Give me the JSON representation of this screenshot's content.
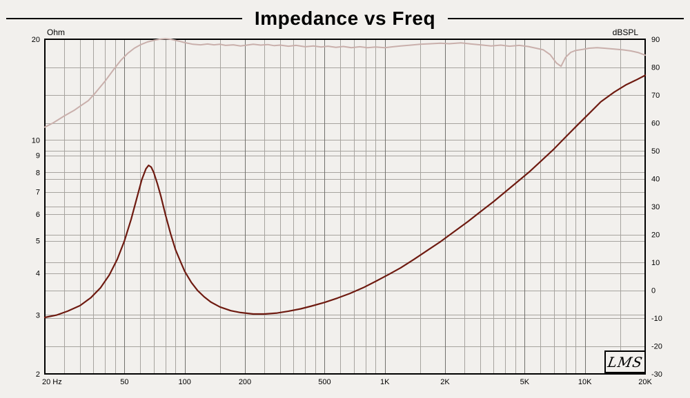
{
  "colors": {
    "background": "#f2f0ed",
    "grid_minor": "#a6a39e",
    "grid_major": "#71706c",
    "frame": "#000000",
    "impedance_curve": "#6e1a10",
    "spl_curve": "#c9afab"
  },
  "logo": {
    "text": "LMS"
  },
  "chart_data": {
    "type": "line",
    "title": "Impedance vs Freq",
    "grid": true,
    "legend": "none",
    "axes": {
      "x": {
        "unit": "Hz",
        "scale": "log",
        "min": 20,
        "max": 20000,
        "major_ticks": [
          {
            "value": 20,
            "label": "20 Hz"
          },
          {
            "value": 50,
            "label": "50"
          },
          {
            "value": 100,
            "label": "100"
          },
          {
            "value": 200,
            "label": "200"
          },
          {
            "value": 500,
            "label": "500"
          },
          {
            "value": 1000,
            "label": "1K"
          },
          {
            "value": 2000,
            "label": "2K"
          },
          {
            "value": 5000,
            "label": "5K"
          },
          {
            "value": 10000,
            "label": "10K"
          },
          {
            "value": 20000,
            "label": "20K"
          }
        ],
        "minor_multipliers": [
          1.5,
          2,
          2.5,
          3,
          3.5,
          4,
          4.5,
          5,
          6,
          7,
          8,
          9
        ]
      },
      "left": {
        "unit": "Ohm",
        "scale": "log",
        "min": 2,
        "max": 20,
        "ticks": [
          20,
          10,
          9,
          8,
          7,
          6,
          5,
          4,
          3,
          2
        ]
      },
      "right": {
        "unit": "dBSPL",
        "scale": "linear",
        "min": -30,
        "max": 90,
        "ticks": [
          90,
          80,
          70,
          60,
          50,
          40,
          30,
          20,
          10,
          0,
          -10,
          -20,
          -30
        ]
      }
    },
    "series": [
      {
        "name": "SPL",
        "unit": "dBSPL",
        "axis": "right",
        "color": "#c9afab",
        "width": 2,
        "points": [
          [
            20,
            58.5
          ],
          [
            22,
            60
          ],
          [
            25,
            62.5
          ],
          [
            28,
            64.5
          ],
          [
            30,
            66
          ],
          [
            33,
            68
          ],
          [
            36,
            71
          ],
          [
            40,
            75
          ],
          [
            44,
            79
          ],
          [
            48,
            82.5
          ],
          [
            52,
            85
          ],
          [
            56,
            86.8
          ],
          [
            60,
            88
          ],
          [
            65,
            89
          ],
          [
            70,
            89.6
          ],
          [
            75,
            90
          ],
          [
            80,
            90.2
          ],
          [
            85,
            90
          ],
          [
            90,
            89.6
          ],
          [
            95,
            89.2
          ],
          [
            100,
            88.8
          ],
          [
            110,
            88.2
          ],
          [
            120,
            88
          ],
          [
            130,
            88.3
          ],
          [
            140,
            88
          ],
          [
            150,
            88.2
          ],
          [
            160,
            87.8
          ],
          [
            175,
            88
          ],
          [
            190,
            87.6
          ],
          [
            200,
            87.8
          ],
          [
            220,
            88.2
          ],
          [
            240,
            87.9
          ],
          [
            260,
            88.1
          ],
          [
            280,
            87.7
          ],
          [
            300,
            87.9
          ],
          [
            330,
            87.5
          ],
          [
            360,
            87.8
          ],
          [
            400,
            87.3
          ],
          [
            440,
            87.6
          ],
          [
            480,
            87.2
          ],
          [
            520,
            87.5
          ],
          [
            570,
            87.1
          ],
          [
            620,
            87.4
          ],
          [
            680,
            87.0
          ],
          [
            750,
            87.3
          ],
          [
            820,
            87.0
          ],
          [
            900,
            87.2
          ],
          [
            1000,
            87.0
          ],
          [
            1100,
            87.3
          ],
          [
            1200,
            87.6
          ],
          [
            1350,
            87.9
          ],
          [
            1500,
            88.2
          ],
          [
            1700,
            88.4
          ],
          [
            1900,
            88.6
          ],
          [
            2100,
            88.4
          ],
          [
            2400,
            88.7
          ],
          [
            2700,
            88.3
          ],
          [
            3000,
            88.0
          ],
          [
            3400,
            87.6
          ],
          [
            3800,
            87.9
          ],
          [
            4200,
            87.5
          ],
          [
            4700,
            87.8
          ],
          [
            5200,
            87.4
          ],
          [
            5700,
            86.8
          ],
          [
            6200,
            86.2
          ],
          [
            6700,
            84.5
          ],
          [
            7200,
            81.5
          ],
          [
            7600,
            80.3
          ],
          [
            8000,
            83.5
          ],
          [
            8500,
            85.3
          ],
          [
            9000,
            86.0
          ],
          [
            9800,
            86.4
          ],
          [
            10500,
            86.8
          ],
          [
            11500,
            87.0
          ],
          [
            12500,
            86.8
          ],
          [
            14000,
            86.5
          ],
          [
            15500,
            86.2
          ],
          [
            17000,
            85.8
          ],
          [
            18500,
            85.2
          ],
          [
            20000,
            84.3
          ]
        ]
      },
      {
        "name": "Impedance",
        "unit": "Ohm",
        "axis": "left",
        "color": "#6e1a10",
        "width": 2.2,
        "points": [
          [
            20,
            2.95
          ],
          [
            23,
            3.0
          ],
          [
            26,
            3.08
          ],
          [
            30,
            3.2
          ],
          [
            34,
            3.38
          ],
          [
            38,
            3.62
          ],
          [
            42,
            3.95
          ],
          [
            46,
            4.4
          ],
          [
            50,
            5.0
          ],
          [
            54,
            5.8
          ],
          [
            58,
            6.8
          ],
          [
            61,
            7.6
          ],
          [
            64,
            8.2
          ],
          [
            66,
            8.4
          ],
          [
            68,
            8.3
          ],
          [
            70,
            8.0
          ],
          [
            73,
            7.4
          ],
          [
            76,
            6.8
          ],
          [
            80,
            6.0
          ],
          [
            85,
            5.25
          ],
          [
            90,
            4.7
          ],
          [
            95,
            4.35
          ],
          [
            100,
            4.05
          ],
          [
            108,
            3.75
          ],
          [
            116,
            3.55
          ],
          [
            125,
            3.4
          ],
          [
            135,
            3.28
          ],
          [
            150,
            3.17
          ],
          [
            170,
            3.09
          ],
          [
            190,
            3.05
          ],
          [
            220,
            3.02
          ],
          [
            250,
            3.02
          ],
          [
            290,
            3.04
          ],
          [
            330,
            3.08
          ],
          [
            380,
            3.13
          ],
          [
            430,
            3.19
          ],
          [
            500,
            3.27
          ],
          [
            580,
            3.37
          ],
          [
            670,
            3.48
          ],
          [
            780,
            3.62
          ],
          [
            900,
            3.78
          ],
          [
            1050,
            3.97
          ],
          [
            1200,
            4.15
          ],
          [
            1400,
            4.4
          ],
          [
            1650,
            4.7
          ],
          [
            1900,
            4.97
          ],
          [
            2200,
            5.3
          ],
          [
            2600,
            5.7
          ],
          [
            3000,
            6.1
          ],
          [
            3500,
            6.55
          ],
          [
            4000,
            7.0
          ],
          [
            4600,
            7.5
          ],
          [
            5300,
            8.05
          ],
          [
            6100,
            8.7
          ],
          [
            7000,
            9.4
          ],
          [
            8000,
            10.2
          ],
          [
            9200,
            11.1
          ],
          [
            10500,
            12.0
          ],
          [
            12000,
            13.0
          ],
          [
            14000,
            13.9
          ],
          [
            16000,
            14.6
          ],
          [
            18000,
            15.1
          ],
          [
            20000,
            15.6
          ]
        ]
      }
    ]
  }
}
